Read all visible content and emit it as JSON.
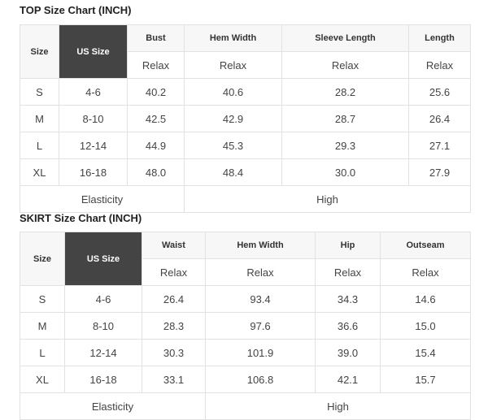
{
  "top": {
    "title": "TOP Size Chart (INCH)",
    "size_label": "Size",
    "us_label": "US Size",
    "columns": [
      "Bust",
      "Hem Width",
      "Sleeve Length",
      "Length"
    ],
    "sub": "Relax",
    "rows": [
      [
        "S",
        "4-6",
        "40.2",
        "40.6",
        "28.2",
        "25.6"
      ],
      [
        "M",
        "8-10",
        "42.5",
        "42.9",
        "28.7",
        "26.4"
      ],
      [
        "L",
        "12-14",
        "44.9",
        "45.3",
        "29.3",
        "27.1"
      ],
      [
        "XL",
        "16-18",
        "48.0",
        "48.4",
        "30.0",
        "27.9"
      ]
    ],
    "elasticity_label": "Elasticity",
    "elasticity_value": "High"
  },
  "skirt": {
    "title": "SKIRT Size Chart (INCH)",
    "size_label": "Size",
    "us_label": "US Size",
    "columns": [
      "Waist",
      "Hem Width",
      "Hip",
      "Outseam"
    ],
    "sub": "Relax",
    "rows": [
      [
        "S",
        "4-6",
        "26.4",
        "93.4",
        "34.3",
        "14.6"
      ],
      [
        "M",
        "8-10",
        "28.3",
        "97.6",
        "36.6",
        "15.0"
      ],
      [
        "L",
        "12-14",
        "30.3",
        "101.9",
        "39.0",
        "15.4"
      ],
      [
        "XL",
        "16-18",
        "33.1",
        "106.8",
        "42.1",
        "15.7"
      ]
    ],
    "elasticity_label": "Elasticity",
    "elasticity_value": "High"
  }
}
